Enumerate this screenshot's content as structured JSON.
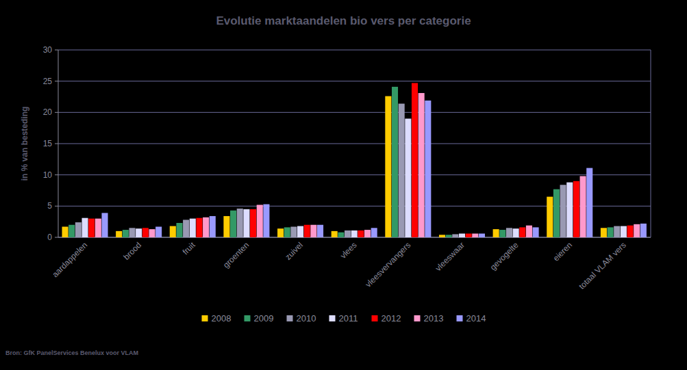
{
  "chart_data": {
    "type": "bar",
    "title": "Evolutie marktaandelen bio vers per categorie",
    "ylabel": "in % van besteding",
    "source": "Bron: GfK PanelServices Benelux voor VLAM",
    "categories": [
      "aardappelen",
      "brood",
      "fruit",
      "groenten",
      "zuivel",
      "vlees",
      "vleesvervangers",
      "vleeswaar",
      "gevogelte",
      "eieren",
      "totaal VLAM vers"
    ],
    "series": [
      {
        "name": "2008",
        "color": "#ffcc00",
        "values": [
          1.7,
          1.0,
          1.8,
          3.4,
          1.4,
          1.0,
          22.6,
          0.4,
          1.3,
          6.5,
          1.5
        ]
      },
      {
        "name": "2009",
        "color": "#339966",
        "values": [
          2.0,
          1.2,
          2.3,
          4.3,
          1.6,
          0.8,
          24.1,
          0.4,
          1.2,
          7.7,
          1.6
        ]
      },
      {
        "name": "2010",
        "color": "#9999b3",
        "values": [
          2.4,
          1.5,
          2.8,
          4.6,
          1.7,
          1.1,
          21.4,
          0.5,
          1.5,
          8.4,
          1.8
        ]
      },
      {
        "name": "2011",
        "color": "#ddddff",
        "values": [
          3.1,
          1.4,
          3.0,
          4.5,
          1.8,
          1.1,
          19.0,
          0.6,
          1.4,
          8.8,
          1.8
        ]
      },
      {
        "name": "2012",
        "color": "#ff0000",
        "values": [
          3.0,
          1.5,
          3.1,
          4.5,
          2.0,
          1.1,
          24.7,
          0.6,
          1.6,
          9.0,
          1.9
        ]
      },
      {
        "name": "2013",
        "color": "#ff99cc",
        "values": [
          3.0,
          1.3,
          3.2,
          5.2,
          2.0,
          1.2,
          23.1,
          0.6,
          1.9,
          9.8,
          2.1
        ]
      },
      {
        "name": "2014",
        "color": "#9999ff",
        "values": [
          3.9,
          1.7,
          3.4,
          5.3,
          2.0,
          1.5,
          21.9,
          0.6,
          1.6,
          11.1,
          2.2
        ]
      }
    ],
    "ylim": [
      0,
      30
    ],
    "yticks": [
      0,
      5,
      10,
      15,
      20,
      25,
      30
    ],
    "grid": true,
    "legend": "bottom"
  }
}
